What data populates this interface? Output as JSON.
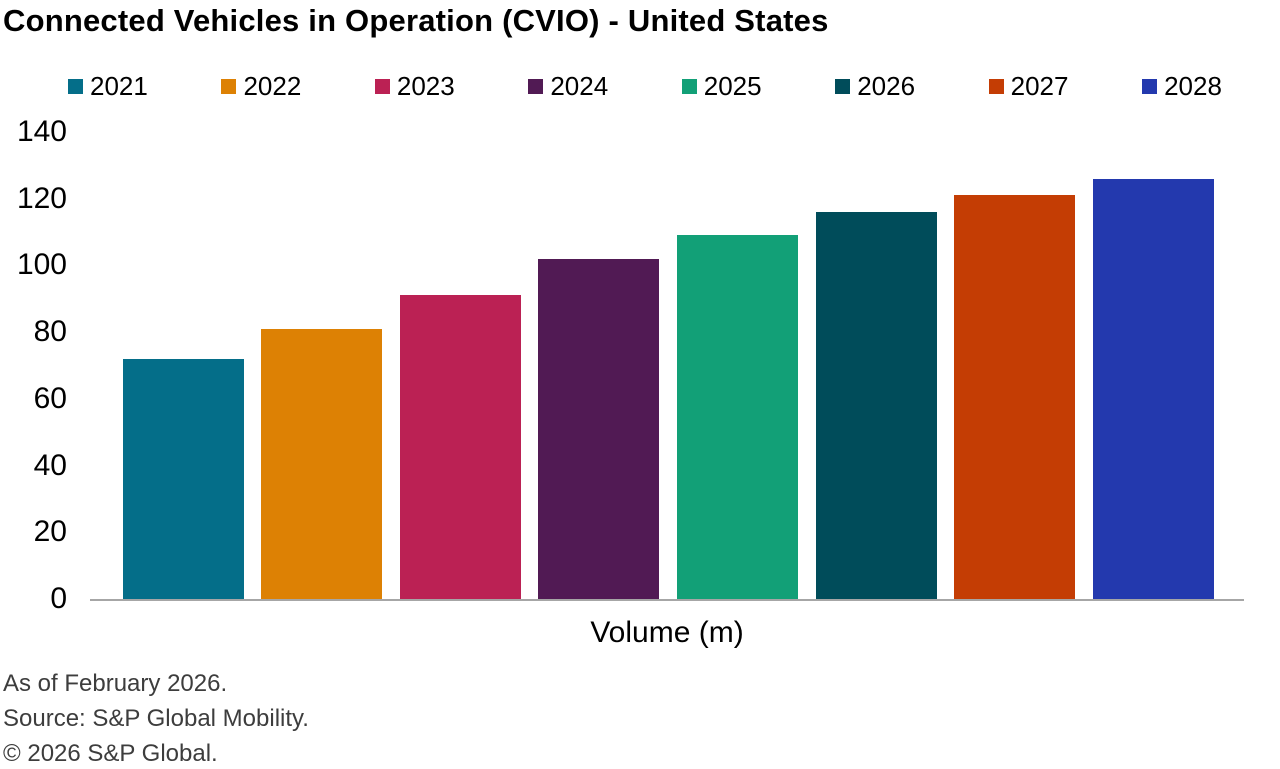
{
  "title": "Connected Vehicles in Operation (CVIO) - United States",
  "chart_data": {
    "type": "bar",
    "title": "Connected Vehicles in Operation (CVIO) - United States",
    "categories": [
      "2021",
      "2022",
      "2023",
      "2024",
      "2025",
      "2026",
      "2027",
      "2028"
    ],
    "values": [
      72,
      81,
      91,
      102,
      109,
      116,
      121,
      126
    ],
    "colors": [
      "#046e89",
      "#dd8104",
      "#bb2154",
      "#511a54",
      "#12a077",
      "#004c5a",
      "#c43d04",
      "#2339ae"
    ],
    "xlabel": "Volume (m)",
    "ylabel": "",
    "ylim": [
      0,
      140
    ],
    "yticks": [
      0,
      20,
      40,
      60,
      80,
      100,
      120,
      140
    ],
    "grid": false,
    "legend_position": "top",
    "unit": "million vehicles"
  },
  "axis": {
    "baseline_color": "#a6a6a6",
    "tick_color": "#000000"
  },
  "footer": {
    "as_of": "As of February 2026.",
    "source": "Source: S&P Global Mobility.",
    "copyright": "© 2026 S&P Global."
  }
}
